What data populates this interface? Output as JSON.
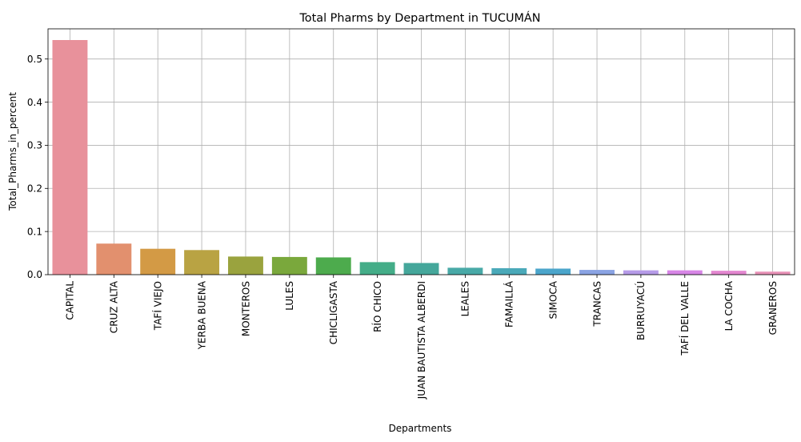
{
  "chart_data": {
    "type": "bar",
    "title": "Total Pharms by Department in TUCUMÁN",
    "xlabel": "Departments",
    "ylabel": "Total_Pharms_in_percent",
    "ylim": [
      0,
      0.57
    ],
    "yticks": [
      0.0,
      0.1,
      0.2,
      0.3,
      0.4,
      0.5
    ],
    "ytick_labels": [
      "0.0",
      "0.1",
      "0.2",
      "0.3",
      "0.4",
      "0.5"
    ],
    "grid": true,
    "categories": [
      "CAPITAL",
      "CRUZ ALTA",
      "TAFÍ VIEJO",
      "YERBA BUENA",
      "MONTEROS",
      "LULES",
      "CHICLIGASTA",
      "RÍO CHICO",
      "JUAN BAUTISTA ALBERDI",
      "LEALES",
      "FAMAILLÁ",
      "SIMOCA",
      "TRANCAS",
      "BURRUYACÚ",
      "TAFÍ DEL VALLE",
      "LA COCHA",
      "GRANEROS"
    ],
    "values": [
      0.544,
      0.072,
      0.06,
      0.057,
      0.042,
      0.041,
      0.04,
      0.029,
      0.027,
      0.016,
      0.015,
      0.014,
      0.011,
      0.01,
      0.01,
      0.009,
      0.007
    ],
    "colors": [
      "#e8919b",
      "#e2906e",
      "#d39a45",
      "#b9a343",
      "#9aa33e",
      "#7aa83c",
      "#4dab4d",
      "#44ad88",
      "#45a79b",
      "#48a9a7",
      "#4aa9b9",
      "#4ba5cb",
      "#8aa3e3",
      "#b69be8",
      "#d786e6",
      "#e387d0",
      "#e892b7"
    ]
  }
}
